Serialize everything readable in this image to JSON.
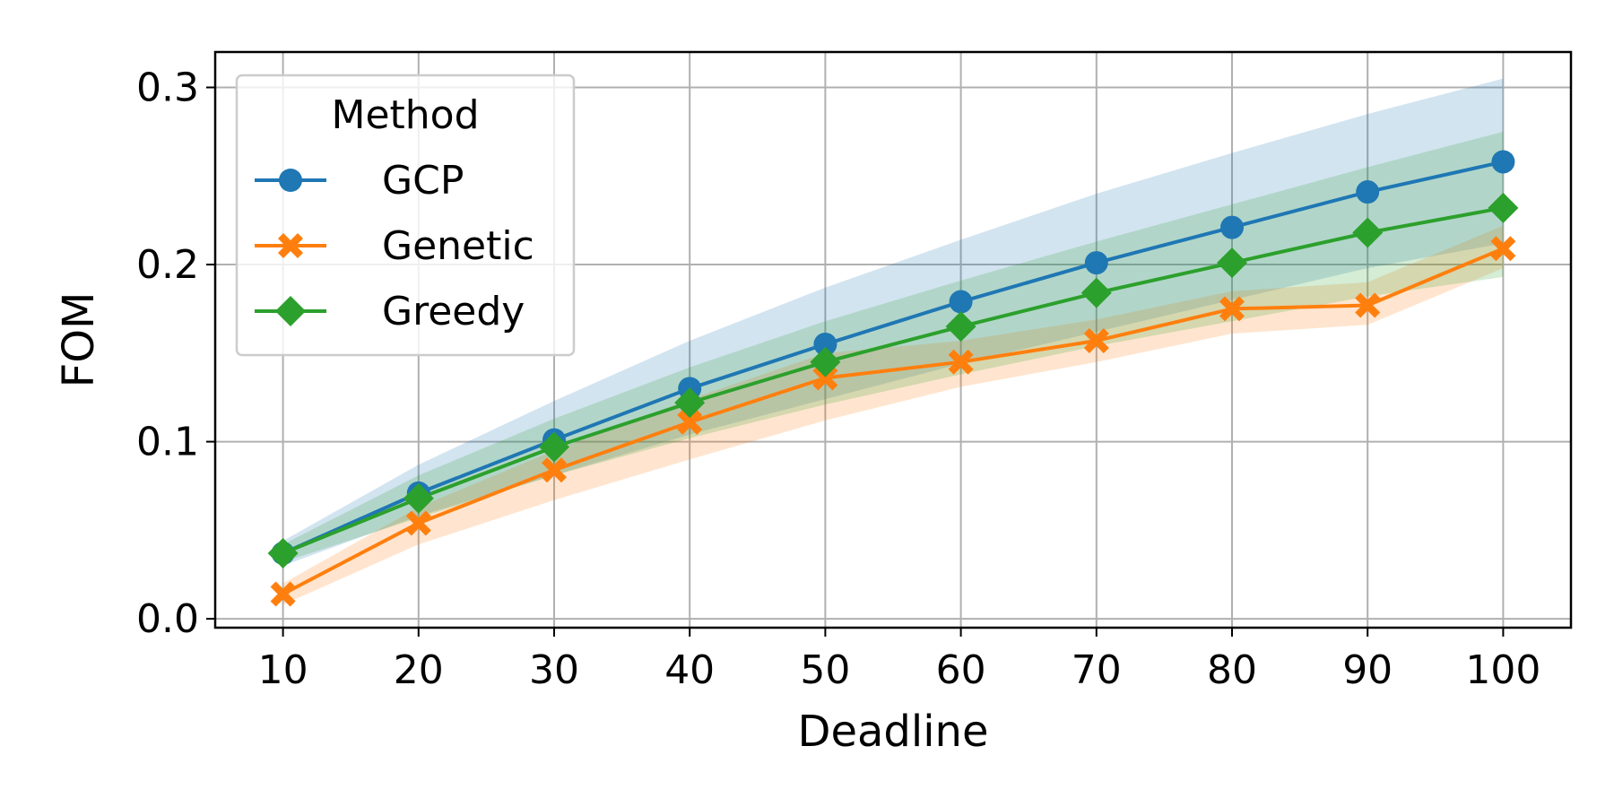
{
  "chart_data": {
    "type": "line",
    "title": "",
    "xlabel": "Deadline",
    "ylabel": "FOM",
    "x": [
      10,
      20,
      30,
      40,
      50,
      60,
      70,
      80,
      90,
      100
    ],
    "xlim": [
      5,
      105
    ],
    "ylim": [
      -0.005,
      0.32
    ],
    "xticks": [
      "10",
      "20",
      "30",
      "40",
      "50",
      "60",
      "70",
      "80",
      "90",
      "100"
    ],
    "yticks": [
      "0.0",
      "0.1",
      "0.2",
      "0.3"
    ],
    "grid": true,
    "legend": {
      "title": "Method",
      "placement": "top-left"
    },
    "series": [
      {
        "name": "GCP",
        "color": "#1f77b4",
        "marker": "circle",
        "values": [
          0.037,
          0.071,
          0.101,
          0.13,
          0.155,
          0.179,
          0.201,
          0.221,
          0.241,
          0.258
        ],
        "band_low": [
          0.03,
          0.058,
          0.081,
          0.104,
          0.124,
          0.144,
          0.162,
          0.18,
          0.198,
          0.212
        ],
        "band_high": [
          0.044,
          0.087,
          0.123,
          0.157,
          0.187,
          0.214,
          0.24,
          0.263,
          0.285,
          0.305
        ]
      },
      {
        "name": "Genetic",
        "color": "#ff7f0e",
        "marker": "x",
        "values": [
          0.014,
          0.054,
          0.084,
          0.111,
          0.136,
          0.145,
          0.157,
          0.175,
          0.177,
          0.209
        ],
        "band_low": [
          0.008,
          0.042,
          0.067,
          0.09,
          0.112,
          0.131,
          0.145,
          0.161,
          0.166,
          0.198
        ],
        "band_high": [
          0.02,
          0.063,
          0.095,
          0.124,
          0.15,
          0.157,
          0.169,
          0.185,
          0.19,
          0.222
        ]
      },
      {
        "name": "Greedy",
        "color": "#2ca02c",
        "marker": "diamond",
        "values": [
          0.037,
          0.068,
          0.097,
          0.122,
          0.145,
          0.165,
          0.184,
          0.201,
          0.218,
          0.232
        ],
        "band_low": [
          0.032,
          0.057,
          0.081,
          0.102,
          0.121,
          0.138,
          0.154,
          0.168,
          0.182,
          0.193
        ],
        "band_high": [
          0.042,
          0.081,
          0.113,
          0.142,
          0.168,
          0.191,
          0.213,
          0.234,
          0.255,
          0.275
        ]
      }
    ]
  }
}
